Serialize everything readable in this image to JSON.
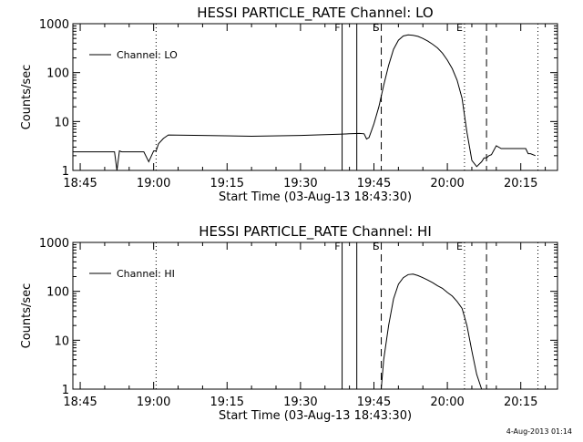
{
  "chart_data": [
    {
      "type": "line",
      "title": "HESSI PARTICLE_RATE Channel: LO",
      "xlabel": "Start Time (03-Aug-13 18:43:30)",
      "ylabel": "Counts/sec",
      "yscale": "log",
      "xlim": [
        "18:43:30",
        "20:22:30"
      ],
      "ylim": [
        1,
        1000
      ],
      "xticks": [
        "18:45",
        "19:00",
        "19:15",
        "19:30",
        "19:45",
        "20:00",
        "20:15"
      ],
      "yticks": [
        "1",
        "10",
        "100",
        "1000"
      ],
      "legend": {
        "placement": "top-left",
        "entries": [
          "Channel: LO"
        ]
      },
      "grid": false,
      "markers": [
        {
          "label": "F",
          "x": "19:38:30",
          "style": "solid"
        },
        {
          "label": "",
          "x": "19:41:30",
          "style": "solid"
        },
        {
          "label": "S",
          "x": "19:46:30",
          "style": "dashed"
        },
        {
          "label": "E",
          "x": "20:03:30",
          "style": "dotted"
        },
        {
          "label": "",
          "x": "20:08:00",
          "style": "dashed"
        },
        {
          "label": "",
          "x": "19:00:30",
          "style": "dotted"
        },
        {
          "label": "",
          "x": "20:18:30",
          "style": "dotted"
        }
      ],
      "series": [
        {
          "name": "Channel: LO",
          "x": [
            "18:43:30",
            "18:52:00",
            "18:52:30",
            "18:53:00",
            "18:53:30",
            "18:58:00",
            "18:59:00",
            "19:00:00",
            "19:00:30",
            "19:01:00",
            "19:02:00",
            "19:03:00",
            "19:10:00",
            "19:20:00",
            "19:30:00",
            "19:35:00",
            "19:38:00",
            "19:40:00",
            "19:42:00",
            "19:43:00",
            "19:43:30",
            "19:44:00",
            "19:44:30",
            "19:45:00",
            "19:46:00",
            "19:47:00",
            "19:48:00",
            "19:49:00",
            "19:50:00",
            "19:51:00",
            "19:52:00",
            "19:53:00",
            "19:54:00",
            "19:55:00",
            "19:56:00",
            "19:57:00",
            "19:58:00",
            "19:59:00",
            "20:00:00",
            "20:01:00",
            "20:02:00",
            "20:03:00",
            "20:04:00",
            "20:05:00",
            "20:06:00",
            "20:07:00",
            "20:07:30",
            "20:08:00",
            "20:08:30",
            "20:09:00",
            "20:10:00",
            "20:11:00",
            "20:11:30",
            "20:12:00",
            "20:13:00",
            "20:14:00",
            "20:15:00",
            "20:16:00",
            "20:16:30",
            "20:17:00",
            "20:18:00"
          ],
          "y": [
            2.4,
            2.4,
            1,
            2.5,
            2.4,
            2.4,
            1.5,
            2.5,
            2.5,
            3.5,
            4.5,
            5.3,
            5.2,
            5.0,
            5.2,
            5.4,
            5.5,
            5.6,
            5.7,
            5.6,
            4.4,
            4.7,
            6.5,
            9,
            20,
            55,
            140,
            300,
            460,
            560,
            590,
            580,
            550,
            500,
            440,
            380,
            320,
            250,
            180,
            120,
            70,
            30,
            6,
            1.6,
            1.2,
            1.5,
            1.8,
            1.8,
            2.0,
            2.1,
            3.2,
            2.8,
            2.8,
            2.8,
            2.8,
            2.8,
            2.8,
            2.8,
            2.2,
            2.2,
            2.0
          ]
        }
      ]
    },
    {
      "type": "line",
      "title": "HESSI PARTICLE_RATE Channel: HI",
      "xlabel": "Start Time (03-Aug-13 18:43:30)",
      "ylabel": "Counts/sec",
      "yscale": "log",
      "xlim": [
        "18:43:30",
        "20:22:30"
      ],
      "ylim": [
        1,
        1000
      ],
      "xticks": [
        "18:45",
        "19:00",
        "19:15",
        "19:30",
        "19:45",
        "20:00",
        "20:15"
      ],
      "yticks": [
        "1",
        "10",
        "100",
        "1000"
      ],
      "legend": {
        "placement": "top-left",
        "entries": [
          "Channel: HI"
        ]
      },
      "grid": false,
      "markers": [
        {
          "label": "F",
          "x": "19:38:30",
          "style": "solid"
        },
        {
          "label": "",
          "x": "19:41:30",
          "style": "solid"
        },
        {
          "label": "S",
          "x": "19:46:30",
          "style": "dashed"
        },
        {
          "label": "E",
          "x": "20:03:30",
          "style": "dotted"
        },
        {
          "label": "",
          "x": "20:08:00",
          "style": "dashed"
        },
        {
          "label": "",
          "x": "19:00:30",
          "style": "dotted"
        },
        {
          "label": "",
          "x": "20:18:30",
          "style": "dotted"
        }
      ],
      "series": [
        {
          "name": "Channel: HI",
          "x": [
            "19:46:30",
            "19:47:00",
            "19:48:00",
            "19:49:00",
            "19:50:00",
            "19:51:00",
            "19:52:00",
            "19:53:00",
            "19:54:00",
            "19:55:00",
            "19:56:00",
            "19:57:00",
            "19:58:00",
            "19:59:00",
            "20:00:00",
            "20:01:00",
            "20:02:00",
            "20:03:00",
            "20:04:00",
            "20:05:00",
            "20:06:00",
            "20:07:00"
          ],
          "y": [
            1,
            4,
            20,
            70,
            140,
            190,
            220,
            225,
            210,
            190,
            170,
            150,
            130,
            115,
            95,
            80,
            62,
            45,
            20,
            6,
            2,
            1
          ]
        }
      ]
    }
  ],
  "footer": {
    "timestamp": "4-Aug-2013 01:14"
  },
  "colors": {
    "background": "#ffffff",
    "foreground": "#000000"
  }
}
